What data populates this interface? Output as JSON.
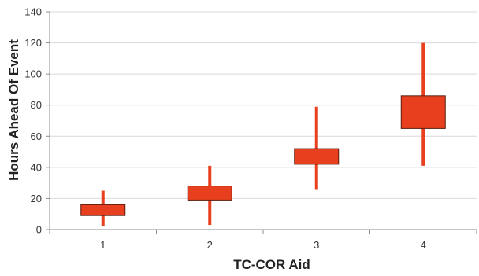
{
  "chart_data": {
    "type": "box",
    "title": "",
    "xlabel": "TC-COR Aid",
    "ylabel": "Hours Ahead Of Event",
    "ylim": [
      0,
      140
    ],
    "yticks": [
      "0",
      "20",
      "40",
      "60",
      "80",
      "100",
      "120",
      "140"
    ],
    "categories": [
      "1",
      "2",
      "3",
      "4"
    ],
    "boxes": [
      {
        "category": "1",
        "whisker_low": 2,
        "box_low": 9,
        "box_high": 16,
        "whisker_high": 25
      },
      {
        "category": "2",
        "whisker_low": 3,
        "box_low": 19,
        "box_high": 28,
        "whisker_high": 41
      },
      {
        "category": "3",
        "whisker_low": 26,
        "box_low": 42,
        "box_high": 52,
        "whisker_high": 79
      },
      {
        "category": "4",
        "whisker_low": 41,
        "box_low": 65,
        "box_high": 86,
        "whisker_high": 120
      }
    ],
    "grid": true,
    "legend": "none",
    "colors": {
      "box_fill": "#e8401f",
      "box_stroke": "#5a1a0c",
      "whisker": "#e8401f",
      "grid": "#d9d9d9",
      "axis": "#8c8c8c"
    }
  }
}
